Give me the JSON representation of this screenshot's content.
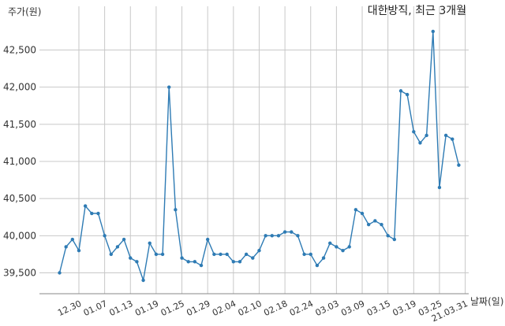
{
  "chart_data": {
    "type": "line",
    "title": "대한방직, 최근 3개월",
    "ylabel": "주가(원)",
    "xlabel": "날짜(일)",
    "ylim": [
      39200,
      42900
    ],
    "yticks": [
      39500,
      40000,
      40500,
      41000,
      41500,
      42000,
      42500
    ],
    "ytick_labels": [
      "39,500",
      "40,000",
      "40,500",
      "41,000",
      "41,500",
      "42,000",
      "42,500"
    ],
    "grid": true,
    "legend": "none",
    "color": "#2e7bb4",
    "xtick_labels": [
      "12.30",
      "01.07",
      "01.13",
      "01.19",
      "01.25",
      "01.29",
      "02.04",
      "02.10",
      "02.18",
      "02.24",
      "03.03",
      "03.09",
      "03.15",
      "03.19",
      "03.25",
      "21.03.31"
    ],
    "xtick_indices": [
      3,
      7,
      11,
      15,
      19,
      23,
      27,
      31,
      35,
      39,
      43,
      47,
      51,
      55,
      59,
      63
    ],
    "series": [
      {
        "values": [
          39500,
          39850,
          39950,
          39800,
          40400,
          40300,
          40300,
          40000,
          39750,
          39850,
          39950,
          39700,
          39650,
          39400,
          39900,
          39750,
          39750,
          42000,
          40350,
          39700,
          39650,
          39650,
          39600,
          39950,
          39750,
          39750,
          39750,
          39650,
          39650,
          39750,
          39700,
          39800,
          40000,
          40000,
          40000,
          40050,
          40050,
          40000,
          39750,
          39750,
          39600,
          39700,
          39900,
          39850,
          39800,
          39850,
          40350,
          40300,
          40150,
          40200,
          40150,
          40000,
          39950,
          41950,
          41900,
          41400,
          41250,
          41350,
          42750,
          40650,
          41350,
          41300,
          40950
        ]
      }
    ]
  }
}
